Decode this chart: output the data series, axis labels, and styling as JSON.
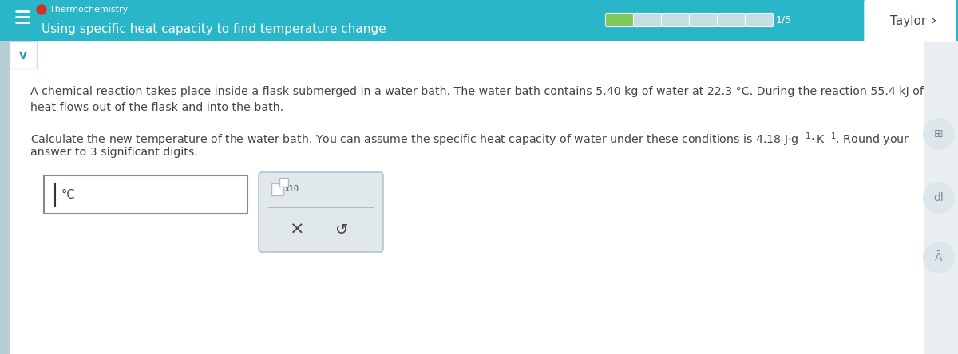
{
  "header_bg": "#29b6c8",
  "header_text": "Using specific heat capacity to find temperature change",
  "header_subtext": "Thermochemistry",
  "body_bg": "#e8eef2",
  "body_text_1": "A chemical reaction takes place inside a flask submerged in a water bath. The water bath contains 5.40 kg of water at 22.3 °C. During the reaction 55.4 kJ of",
  "body_text_2": "heat flows out of the flask and into the bath.",
  "body_text_3": "Calculate the new temperature of the water bath. You can assume the specific heat capacity of water under these conditions is 4.18 J·g$^{-1}$·K$^{-1}$. Round your",
  "body_text_4": "answer to 3 significant digits.",
  "input_box_label": "°C",
  "progress_green": "#7dc858",
  "progress_empty": "#c5dde4",
  "progress_text": "1/5",
  "taylor_text": "Taylor",
  "white": "#ffffff",
  "dark_teal": "#1e9aaa",
  "light_gray": "#d0dce2",
  "mid_gray": "#aabbc4",
  "text_dark": "#444444",
  "left_sidebar_color": "#b8cdd6",
  "right_icons_bg": "#dde6eb",
  "icon_color": "#7a8f99",
  "panel2_bg": "#e0e8ec",
  "content_bg": "#f5f8fa"
}
